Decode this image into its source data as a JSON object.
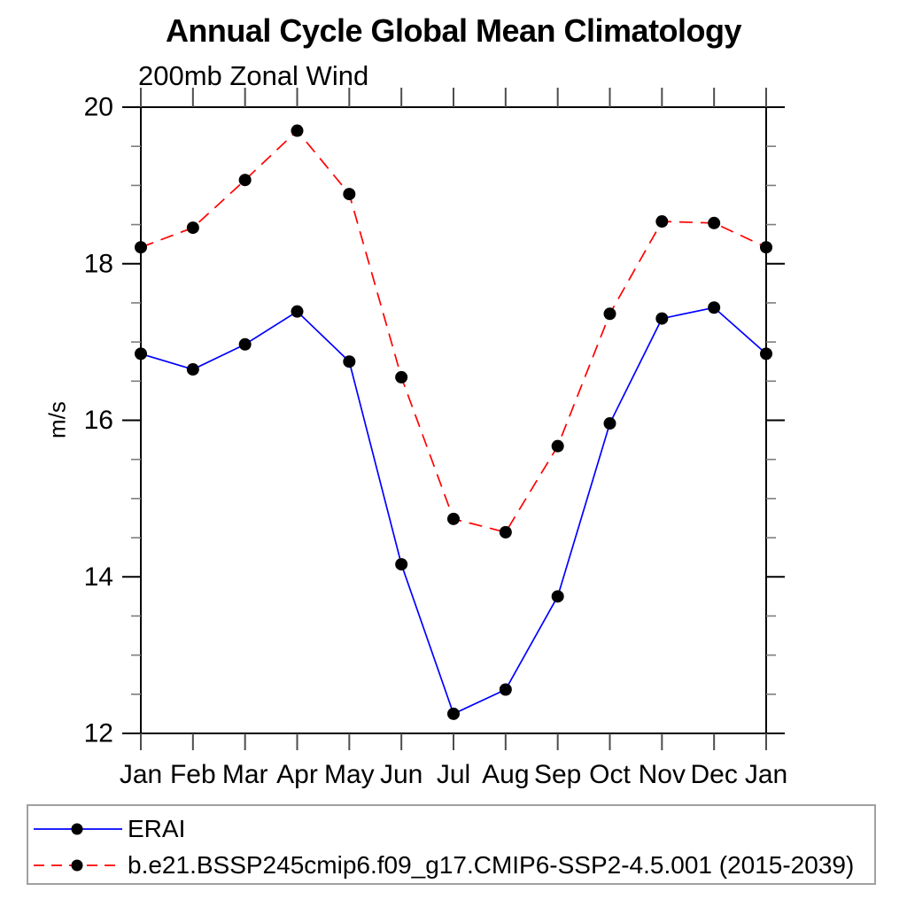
{
  "page": {
    "background": "#ffffff"
  },
  "chart_data": {
    "type": "line",
    "title": "Annual Cycle Global Mean Climatology",
    "subtitle": "200mb Zonal Wind",
    "xlabel": "",
    "ylabel": "m/s",
    "categories": [
      "Jan",
      "Feb",
      "Mar",
      "Apr",
      "May",
      "Jun",
      "Jul",
      "Aug",
      "Sep",
      "Oct",
      "Nov",
      "Dec",
      "Jan"
    ],
    "ylim": [
      12,
      20
    ],
    "ytick_major": [
      12,
      14,
      16,
      18,
      20
    ],
    "ytick_minor_step": 0.5,
    "grid": false,
    "legend_position": "bottom",
    "marker": "filled-circle",
    "marker_color": "#000000",
    "axis_color": "#000000",
    "legend_border_color": "#a0a0a0",
    "series": [
      {
        "name": "ERAI",
        "color": "#0000ff",
        "line_style": "solid",
        "values": [
          16.85,
          16.65,
          16.97,
          17.39,
          16.75,
          14.16,
          12.25,
          12.56,
          13.75,
          15.96,
          17.3,
          17.44,
          16.85
        ]
      },
      {
        "name": "b.e21.BSSP245cmip6.f09_g17.CMIP6-SSP2-4.5.001 (2015-2039)",
        "color": "#ff0000",
        "line_style": "dashed",
        "values": [
          18.21,
          18.46,
          19.07,
          19.7,
          18.89,
          16.55,
          14.74,
          14.57,
          15.67,
          17.36,
          18.54,
          18.52,
          18.21
        ]
      }
    ]
  }
}
